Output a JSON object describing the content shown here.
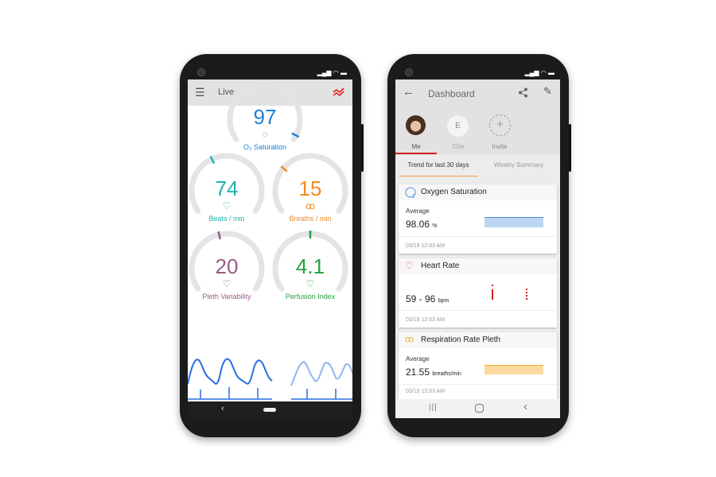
{
  "live": {
    "title": "Live",
    "gauges": [
      {
        "value": "97",
        "label": "O₂ Saturation",
        "color": "#1e7fd8",
        "level": 0.97
      },
      {
        "value": "74",
        "label": "Beats / min",
        "color": "#1fb2ad",
        "level": 0.4
      },
      {
        "value": "15",
        "label": "Breaths / min",
        "color": "#f58a1f",
        "level": 0.3
      },
      {
        "value": "20",
        "label": "Pleth Variability",
        "color": "#9b5a86",
        "level": 0.45
      },
      {
        "value": "4.1",
        "label": "Perfusion Index",
        "color": "#26a33c",
        "level": 0.5
      }
    ],
    "accent": "#e02020"
  },
  "dashboard": {
    "title": "Dashboard",
    "profiles": [
      {
        "label": "Me"
      },
      {
        "label": "Ellie",
        "initial": "E"
      },
      {
        "label": "Invite"
      }
    ],
    "tabs": [
      "Trend for last 30 days",
      "Weekly Summary"
    ],
    "cards": [
      {
        "title": "Oxygen Saturation",
        "sub": "Average",
        "value": "98.06",
        "unit": "%",
        "time": "03/19 12:03 AM",
        "color": "#bcd6f2"
      },
      {
        "title": "Heart Rate",
        "value": "59 - 96",
        "unit": "bpm",
        "time": "03/19 12:03 AM",
        "color": "#d42020"
      },
      {
        "title": "Respiration Rate Pleth",
        "sub": "Average",
        "value": "21.55",
        "unit": "breaths/min",
        "time": "03/19 12:03 AM",
        "color": "#fcd9a0"
      }
    ]
  }
}
